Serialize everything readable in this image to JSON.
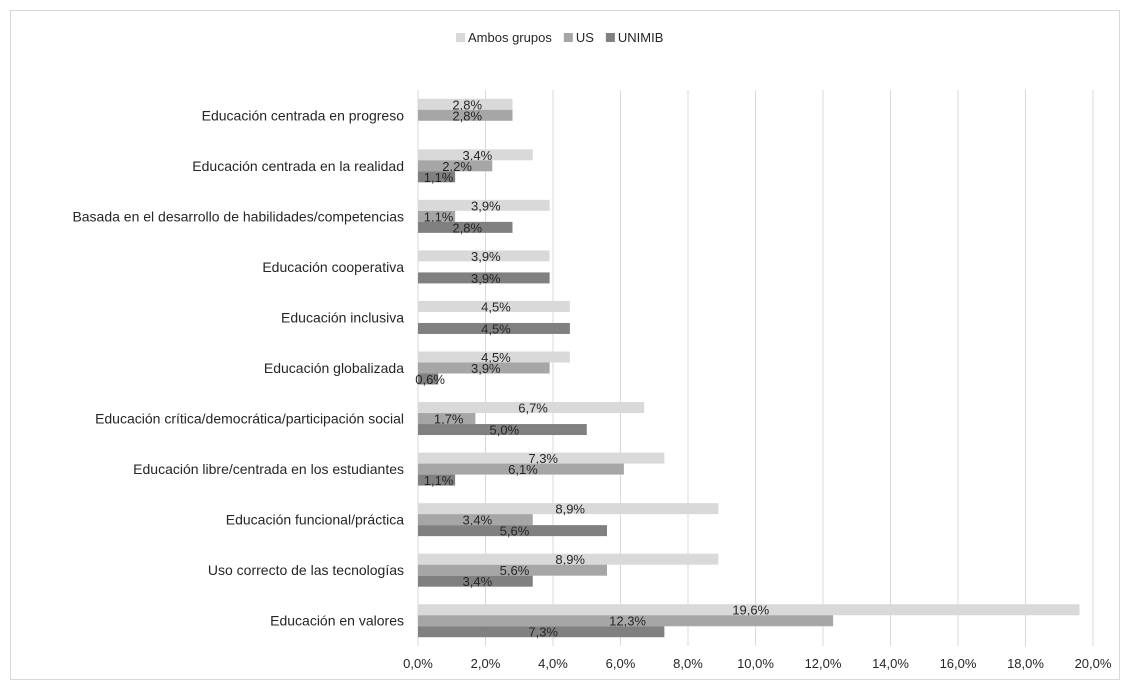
{
  "chart_data": {
    "type": "bar",
    "orientation": "horizontal",
    "categories": [
      "Educación centrada en progreso",
      "Educación centrada en la realidad",
      "Basada en el desarrollo de habilidades/competencias",
      "Educación cooperativa",
      "Educación inclusiva",
      "Educación globalizada",
      "Educación crítica/democrática/participación social",
      "Educación libre/centrada en los estudiantes",
      "Educación funcional/práctica",
      "Uso correcto de las tecnologías",
      "Educación en valores"
    ],
    "series": [
      {
        "name": "Ambos grupos",
        "color": "#d9d9d9",
        "values": [
          2.8,
          3.4,
          3.9,
          3.9,
          4.5,
          4.5,
          6.7,
          7.3,
          8.9,
          8.9,
          19.6
        ],
        "labels": [
          "2,8%",
          "3,4%",
          "3,9%",
          "3,9%",
          "4,5%",
          "4,5%",
          "6,7%",
          "7,3%",
          "8,9%",
          "8,9%",
          "19,6%"
        ]
      },
      {
        "name": "US",
        "color": "#a6a6a6",
        "values": [
          2.8,
          2.2,
          1.1,
          null,
          null,
          3.9,
          1.7,
          6.1,
          3.4,
          5.6,
          12.3
        ],
        "labels": [
          "2,8%",
          "2,2%",
          "1,1%",
          null,
          null,
          "3,9%",
          "1,7%",
          "6,1%",
          "3,4%",
          "5,6%",
          "12,3%"
        ]
      },
      {
        "name": "UNIMIB",
        "color": "#808080",
        "values": [
          null,
          1.1,
          2.8,
          3.9,
          4.5,
          0.6,
          5.0,
          1.1,
          5.6,
          3.4,
          7.3
        ],
        "labels": [
          null,
          "1,1%",
          "2,8%",
          "3,9%",
          "4,5%",
          "0,6%",
          "5,0%",
          "1,1%",
          "5,6%",
          "3,4%",
          "7,3%"
        ]
      }
    ],
    "x_ticks": [
      "0,0%",
      "2,0%",
      "4,0%",
      "6,0%",
      "8,0%",
      "10,0%",
      "12,0%",
      "14,0%",
      "16,0%",
      "18,0%",
      "20,0%"
    ],
    "xlim": [
      0,
      20
    ],
    "xlabel": "",
    "ylabel": "",
    "grid": true,
    "legend_position": "top-center"
  }
}
